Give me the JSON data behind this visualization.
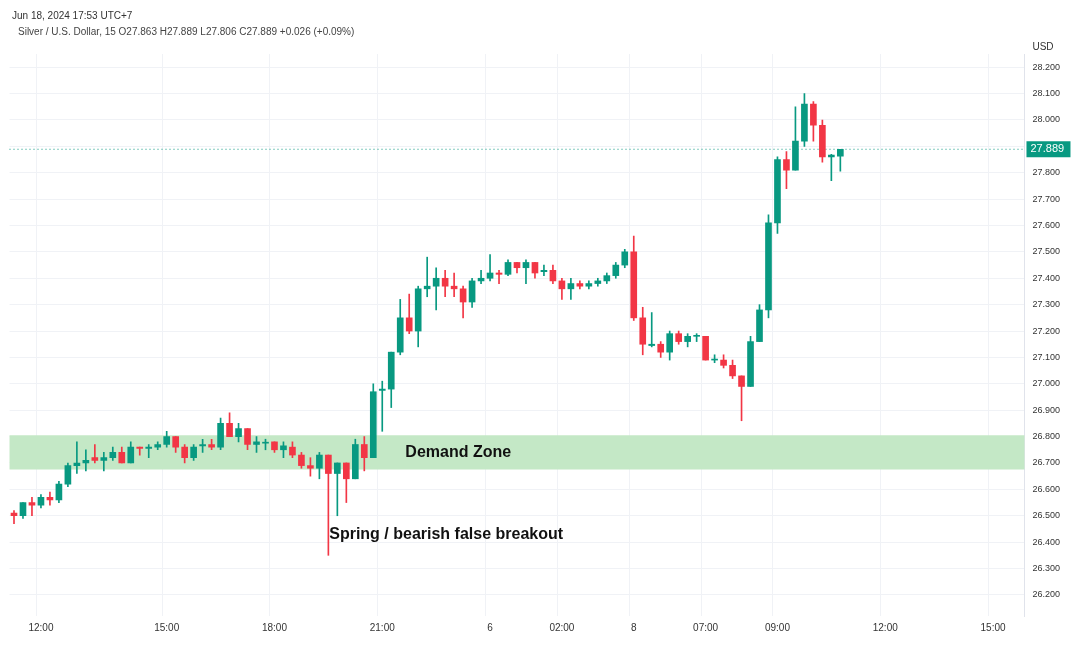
{
  "chart_data": {
    "type": "candlestick",
    "title": "Silver / U.S. Dollar, 15 O27.863 H27.889 L27.806 C27.889 +0.026 (+0.09%)",
    "subtitle": "Jun 18, 2024 17:53 UTC+7",
    "ylabel": "USD",
    "annotations": [
      "Spring / bearish false breakout"
    ],
    "categories": [
      null,
      null,
      null,
      "12:00",
      null,
      null,
      null,
      null,
      null,
      null,
      null,
      null,
      null,
      null,
      null,
      null,
      null,
      "15:00",
      null,
      null,
      null,
      null,
      null,
      null,
      null,
      null,
      null,
      null,
      null,
      "18:00",
      null,
      null,
      null,
      null,
      null,
      null,
      null,
      null,
      null,
      null,
      null,
      "21:00",
      null,
      null,
      null,
      null,
      null,
      null,
      null,
      null,
      null,
      null,
      null,
      "6",
      null,
      null,
      null,
      null,
      null,
      null,
      null,
      "02:00",
      null,
      null,
      null,
      null,
      null,
      null,
      null,
      "8",
      null,
      null,
      null,
      null,
      null,
      null,
      null,
      "07:00",
      null,
      null,
      null,
      null,
      null,
      null,
      null,
      "09:00",
      null,
      null,
      null,
      null,
      null,
      null,
      null,
      null,
      null,
      null,
      null,
      "12:00",
      null,
      null,
      null,
      null,
      null,
      null,
      null,
      null,
      null,
      null,
      null,
      "15:00",
      null,
      null,
      null
    ],
    "ohlc": [
      [
        26.51,
        26.52,
        26.47,
        26.5
      ],
      [
        26.5,
        26.55,
        26.49,
        26.55
      ],
      [
        26.55,
        26.57,
        26.5,
        26.54
      ],
      [
        26.54,
        26.58,
        26.53,
        26.57
      ],
      [
        26.57,
        26.59,
        26.54,
        26.56
      ],
      [
        26.56,
        26.63,
        26.55,
        26.62
      ],
      [
        26.62,
        26.7,
        26.61,
        26.69
      ],
      [
        26.69,
        26.78,
        26.66,
        26.7
      ],
      [
        26.7,
        26.75,
        26.67,
        26.71
      ],
      [
        26.72,
        26.77,
        26.7,
        26.71
      ],
      [
        26.71,
        26.74,
        26.67,
        26.72
      ],
      [
        26.72,
        26.76,
        26.71,
        26.74
      ],
      [
        26.74,
        26.76,
        26.7,
        26.7
      ],
      [
        26.7,
        26.78,
        26.7,
        26.76
      ],
      [
        26.76,
        26.76,
        26.73,
        26.755
      ],
      [
        26.755,
        26.77,
        26.72,
        26.76
      ],
      [
        26.76,
        26.78,
        26.75,
        26.77
      ],
      [
        26.77,
        26.82,
        26.76,
        26.8
      ],
      [
        26.8,
        26.8,
        26.74,
        26.76
      ],
      [
        26.76,
        26.77,
        26.7,
        26.72
      ],
      [
        26.72,
        26.77,
        26.71,
        26.76
      ],
      [
        26.765,
        26.79,
        26.74,
        26.77
      ],
      [
        26.77,
        26.79,
        26.75,
        26.76
      ],
      [
        26.76,
        26.87,
        26.75,
        26.85
      ],
      [
        26.85,
        26.89,
        26.8,
        26.8
      ],
      [
        26.8,
        26.85,
        26.78,
        26.83
      ],
      [
        26.83,
        26.83,
        26.75,
        26.77
      ],
      [
        26.77,
        26.8,
        26.74,
        26.78
      ],
      [
        26.775,
        26.79,
        26.75,
        26.775
      ],
      [
        26.78,
        26.78,
        26.74,
        26.75
      ],
      [
        26.75,
        26.78,
        26.72,
        26.765
      ],
      [
        26.76,
        26.78,
        26.72,
        26.73
      ],
      [
        26.73,
        26.74,
        26.68,
        26.69
      ],
      [
        26.69,
        26.72,
        26.65,
        26.68
      ],
      [
        26.68,
        26.74,
        26.64,
        26.73
      ],
      [
        26.73,
        26.73,
        26.35,
        26.66
      ],
      [
        26.66,
        26.7,
        26.5,
        26.7
      ],
      [
        26.7,
        26.7,
        26.55,
        26.64
      ],
      [
        26.64,
        26.79,
        26.64,
        26.77
      ],
      [
        26.77,
        26.8,
        26.67,
        26.72
      ],
      [
        26.72,
        27.0,
        26.72,
        26.97
      ],
      [
        26.975,
        27.01,
        26.82,
        26.98
      ],
      [
        26.98,
        27.12,
        26.91,
        27.12
      ],
      [
        27.12,
        27.32,
        27.11,
        27.25
      ],
      [
        27.25,
        27.34,
        27.19,
        27.2
      ],
      [
        27.2,
        27.37,
        27.14,
        27.36
      ],
      [
        27.36,
        27.48,
        27.33,
        27.37
      ],
      [
        27.37,
        27.44,
        27.28,
        27.4
      ],
      [
        27.4,
        27.43,
        27.33,
        27.37
      ],
      [
        27.37,
        27.42,
        27.33,
        27.36
      ],
      [
        27.36,
        27.37,
        27.25,
        27.31
      ],
      [
        27.31,
        27.4,
        27.29,
        27.39
      ],
      [
        27.39,
        27.43,
        27.38,
        27.4
      ],
      [
        27.4,
        27.49,
        27.39,
        27.42
      ],
      [
        27.42,
        27.43,
        27.38,
        27.415
      ],
      [
        27.415,
        27.47,
        27.41,
        27.46
      ],
      [
        27.46,
        27.46,
        27.42,
        27.44
      ],
      [
        27.44,
        27.47,
        27.38,
        27.46
      ],
      [
        27.46,
        27.46,
        27.4,
        27.42
      ],
      [
        27.425,
        27.45,
        27.41,
        27.43
      ],
      [
        27.43,
        27.45,
        27.38,
        27.39
      ],
      [
        27.39,
        27.4,
        27.32,
        27.36
      ],
      [
        27.36,
        27.4,
        27.32,
        27.38
      ],
      [
        27.38,
        27.39,
        27.36,
        27.37
      ],
      [
        27.37,
        27.39,
        27.36,
        27.38
      ],
      [
        27.38,
        27.4,
        27.37,
        27.39
      ],
      [
        27.39,
        27.42,
        27.38,
        27.41
      ],
      [
        27.41,
        27.46,
        27.4,
        27.45
      ],
      [
        27.45,
        27.51,
        27.44,
        27.5
      ],
      [
        27.5,
        27.56,
        27.24,
        27.25
      ],
      [
        27.25,
        27.29,
        27.11,
        27.15
      ],
      [
        27.145,
        27.27,
        27.14,
        27.15
      ],
      [
        27.15,
        27.16,
        27.1,
        27.12
      ],
      [
        27.12,
        27.2,
        27.09,
        27.19
      ],
      [
        27.19,
        27.2,
        27.15,
        27.16
      ],
      [
        27.16,
        27.19,
        27.14,
        27.18
      ],
      [
        27.18,
        27.19,
        27.16,
        27.18
      ],
      [
        27.18,
        27.18,
        27.09,
        27.09
      ],
      [
        27.09,
        27.11,
        27.08,
        27.09
      ],
      [
        27.09,
        27.11,
        27.06,
        27.07
      ],
      [
        27.07,
        27.09,
        27.02,
        27.03
      ],
      [
        27.03,
        27.03,
        26.86,
        26.99
      ],
      [
        26.99,
        27.18,
        26.99,
        27.16
      ],
      [
        27.16,
        27.3,
        27.16,
        27.28
      ],
      [
        27.28,
        27.64,
        27.25,
        27.61
      ],
      [
        27.61,
        27.86,
        27.57,
        27.85
      ],
      [
        27.85,
        27.88,
        27.74,
        27.81
      ],
      [
        27.81,
        28.05,
        27.81,
        27.92
      ],
      [
        27.92,
        28.1,
        27.9,
        28.06
      ],
      [
        28.06,
        28.07,
        27.92,
        27.98
      ],
      [
        27.98,
        28.0,
        27.84,
        27.86
      ],
      [
        27.86,
        27.87,
        27.77,
        27.867
      ],
      [
        27.863,
        27.889,
        27.806,
        27.889
      ],
      null,
      null,
      null,
      null,
      null,
      null,
      null,
      null,
      null,
      null,
      null,
      null,
      null,
      null,
      null,
      null,
      null,
      null,
      null,
      null
    ],
    "colors": [
      "#f23645",
      "#089981",
      "#f23645",
      "#089981",
      "#f23645",
      "#089981",
      "#089981",
      "#089981",
      "#089981",
      "#f23645",
      "#089981",
      "#089981",
      "#f23645",
      "#089981",
      "#f23645",
      "#089981",
      "#089981",
      "#089981",
      "#f23645",
      "#f23645",
      "#089981",
      "#089981",
      "#f23645",
      "#089981",
      "#f23645",
      "#089981",
      "#f23645",
      "#089981",
      "#089981",
      "#f23645",
      "#089981",
      "#f23645",
      "#f23645",
      "#f23645",
      "#089981",
      "#f23645",
      "#089981",
      "#f23645",
      "#089981",
      "#f23645",
      "#089981",
      "#089981",
      "#089981",
      "#089981",
      "#f23645",
      "#089981",
      "#089981",
      "#089981",
      "#f23645",
      "#f23645",
      "#f23645",
      "#089981",
      "#089981",
      "#089981",
      "#f23645",
      "#089981",
      "#f23645",
      "#089981",
      "#f23645",
      "#089981",
      "#f23645",
      "#f23645",
      "#089981",
      "#f23645",
      "#089981",
      "#089981",
      "#089981",
      "#089981",
      "#089981",
      "#f23645",
      "#f23645",
      "#089981",
      "#f23645",
      "#089981",
      "#f23645",
      "#089981",
      "#089981",
      "#f23645",
      "#089981",
      "#f23645",
      "#f23645",
      "#f23645",
      "#089981",
      "#089981",
      "#089981",
      "#089981",
      "#f23645",
      "#089981",
      "#089981",
      "#f23645",
      "#f23645",
      "#089981",
      "#089981",
      null,
      null,
      null,
      null,
      null,
      null,
      null,
      null,
      null,
      null,
      null,
      null,
      null,
      null,
      null,
      null,
      null,
      null,
      null,
      null
    ],
    "ylim": [
      26.12,
      28.25
    ],
    "yticks": [
      {
        "value": 26.2,
        "label": "26.200"
      },
      {
        "value": 26.3,
        "label": "26.300"
      },
      {
        "value": 26.4,
        "label": "26.400"
      },
      {
        "value": 26.5,
        "label": "26.500"
      },
      {
        "value": 26.6,
        "label": "26.600"
      },
      {
        "value": 26.7,
        "label": "26.700"
      },
      {
        "value": 26.8,
        "label": "26.800"
      },
      {
        "value": 26.9,
        "label": "26.900"
      },
      {
        "value": 27.0,
        "label": "27.000"
      },
      {
        "value": 27.1,
        "label": "27.100"
      },
      {
        "value": 27.2,
        "label": "27.200"
      },
      {
        "value": 27.3,
        "label": "27.300"
      },
      {
        "value": 27.4,
        "label": "27.400"
      },
      {
        "value": 27.5,
        "label": "27.500"
      },
      {
        "value": 27.6,
        "label": "27.600"
      },
      {
        "value": 27.7,
        "label": "27.700"
      },
      {
        "value": 27.8,
        "label": "27.800"
      },
      {
        "value": 27.9,
        "label": null
      },
      {
        "value": 28.0,
        "label": "28.000"
      },
      {
        "value": 28.1,
        "label": "28.100"
      },
      {
        "value": 28.2,
        "label": "28.200"
      }
    ],
    "ref_lines": [
      {
        "axis": "y",
        "value": 27.889,
        "label": "27.889",
        "color": "#089981",
        "line_style": "dotted"
      }
    ],
    "bands": [
      {
        "axis": "y",
        "from": 26.675,
        "to": 26.805,
        "label": "Demand Zone",
        "color": "#c4e8c6"
      }
    ],
    "grid": true
  }
}
